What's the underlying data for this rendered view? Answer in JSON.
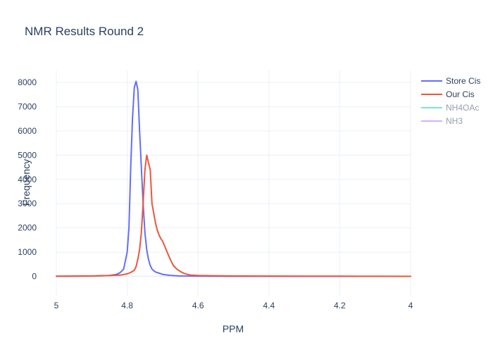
{
  "chart_data": {
    "type": "line",
    "title": "NMR Results Round 2",
    "xlabel": "PPM",
    "ylabel": "Frequency",
    "xlim": [
      5,
      4
    ],
    "x_reversed": true,
    "ylim": [
      -800,
      8500
    ],
    "xticks": [
      5,
      4.8,
      4.6,
      4.4,
      4.2,
      4
    ],
    "xtick_labels": [
      "5",
      "4.8",
      "4.6",
      "4.4",
      "4.2",
      "4"
    ],
    "yticks": [
      0,
      1000,
      2000,
      3000,
      4000,
      5000,
      6000,
      7000,
      8000
    ],
    "ytick_labels": [
      "0",
      "1000",
      "2000",
      "3000",
      "4000",
      "5000",
      "6000",
      "7000",
      "8000"
    ],
    "grid": true,
    "legend_position": "top-right",
    "series": [
      {
        "name": "Store Cis",
        "color": "#636efa",
        "visible": true,
        "x": [
          5.0,
          4.9,
          4.85,
          4.83,
          4.82,
          4.81,
          4.8,
          4.795,
          4.79,
          4.785,
          4.78,
          4.775,
          4.77,
          4.765,
          4.76,
          4.755,
          4.75,
          4.745,
          4.74,
          4.735,
          4.73,
          4.725,
          4.72,
          4.71,
          4.7,
          4.68,
          4.65,
          4.6,
          4.5,
          4.0
        ],
        "y": [
          0,
          10,
          30,
          80,
          150,
          300,
          1000,
          2000,
          4500,
          6500,
          7800,
          8050,
          7700,
          6000,
          4500,
          3000,
          1800,
          1100,
          700,
          450,
          300,
          230,
          180,
          130,
          80,
          40,
          15,
          5,
          0,
          0
        ]
      },
      {
        "name": "Our Cis",
        "color": "#ef553b",
        "visible": true,
        "x": [
          5.0,
          4.9,
          4.85,
          4.82,
          4.8,
          4.79,
          4.78,
          4.775,
          4.77,
          4.765,
          4.76,
          4.755,
          4.75,
          4.745,
          4.74,
          4.735,
          4.73,
          4.72,
          4.715,
          4.71,
          4.705,
          4.7,
          4.69,
          4.68,
          4.67,
          4.66,
          4.65,
          4.64,
          4.63,
          4.62,
          4.6,
          4.55,
          4.5,
          4.4,
          4.3,
          4.2,
          4.1,
          4.0
        ],
        "y": [
          5,
          15,
          30,
          50,
          100,
          160,
          250,
          400,
          700,
          1100,
          1800,
          3000,
          4400,
          5000,
          4700,
          4400,
          3000,
          2200,
          1900,
          1700,
          1550,
          1450,
          1100,
          750,
          450,
          300,
          200,
          120,
          80,
          50,
          30,
          20,
          15,
          10,
          8,
          5,
          2,
          0
        ]
      },
      {
        "name": "NH4OAc",
        "color": "#00cc96",
        "visible": false,
        "x": [],
        "y": []
      },
      {
        "name": "NH3",
        "color": "#ab63fa",
        "visible": false,
        "x": [],
        "y": []
      }
    ]
  }
}
